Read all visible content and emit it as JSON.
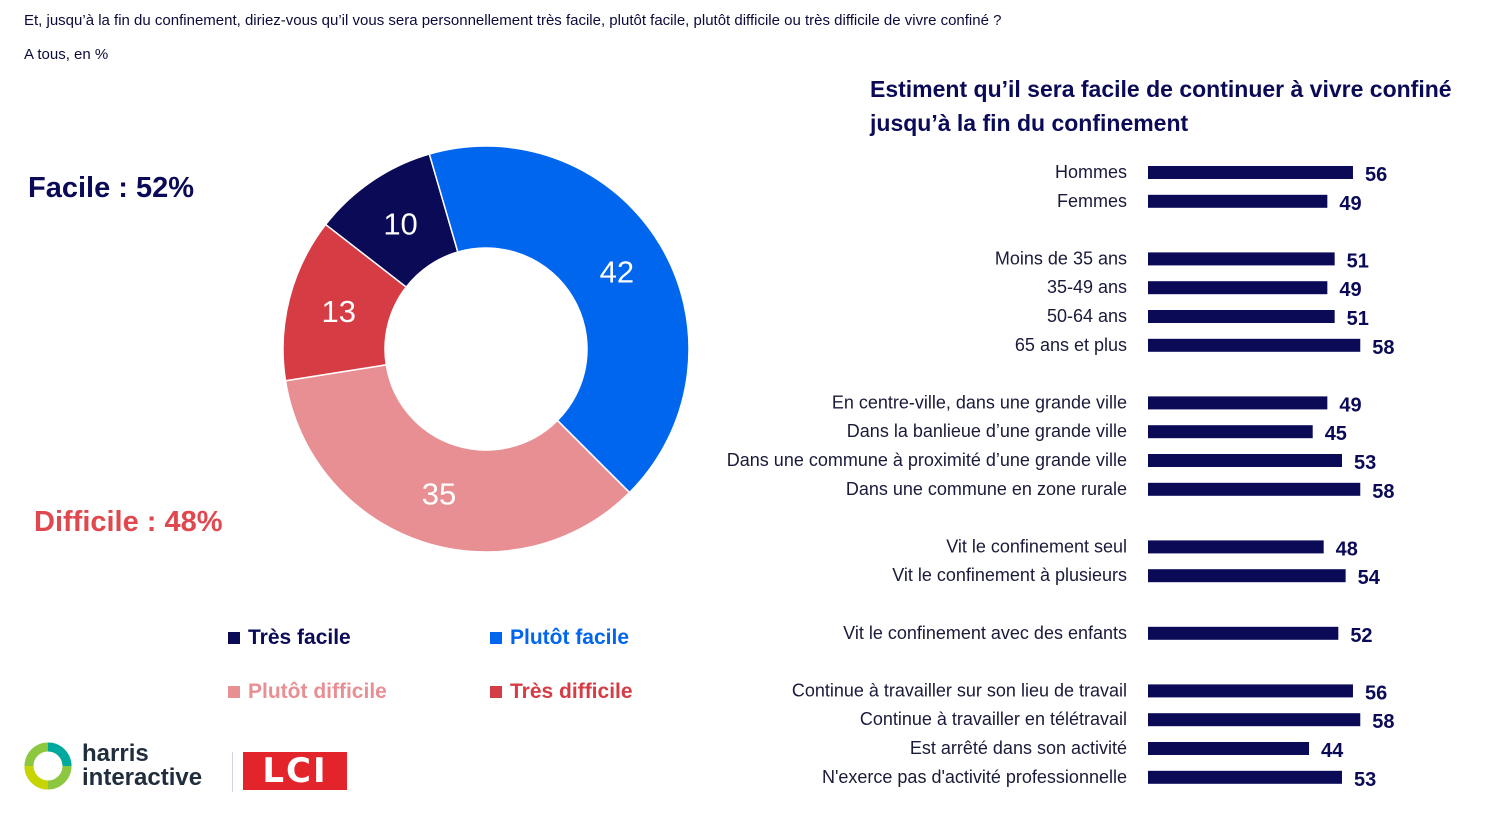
{
  "header": {
    "question": "Et, jusqu’à la fin du confinement, diriez-vous qu’il vous sera personnellement très facile, plutôt facile, plutôt difficile ou très difficile de vivre confiné ?",
    "base": "A tous, en %"
  },
  "totals": {
    "facile": "Facile : 52%",
    "difficile": "Difficile : 48%"
  },
  "logos": {
    "harris_line1": "harris",
    "harris_line2": "interactive",
    "lci": "LCI"
  },
  "colors": {
    "tres_facile": "#0a0a57",
    "plutot_facile": "#0066ee",
    "plutot_difficile": "#e88f93",
    "tres_difficile": "#d63c44",
    "bar": "#0a0a57"
  },
  "chart_data": [
    {
      "type": "pie",
      "variant": "donut",
      "series": [
        {
          "name": "Très facile",
          "value": 10,
          "color": "#0a0a57"
        },
        {
          "name": "Plutôt facile",
          "value": 42,
          "color": "#0066ee"
        },
        {
          "name": "Plutôt difficile",
          "value": 35,
          "color": "#e88f93"
        },
        {
          "name": "Très difficile",
          "value": 13,
          "color": "#d63c44"
        }
      ],
      "legend": [
        "Très facile",
        "Plutôt facile",
        "Plutôt difficile",
        "Très difficile"
      ],
      "legend_placement": "bottom"
    },
    {
      "type": "bar",
      "orientation": "horizontal",
      "title": "Estiment qu’il sera facile de continuer à vivre confiné jusqu’à la fin du confinement",
      "title_lines": [
        "Estiment qu’il sera facile de continuer à vivre confiné",
        "jusqu’à la fin du confinement"
      ],
      "groups": [
        {
          "categories": [
            "Hommes",
            "Femmes"
          ],
          "values": [
            56,
            49
          ]
        },
        {
          "categories": [
            "Moins de 35 ans",
            "35-49 ans",
            "50-64 ans",
            "65 ans et plus"
          ],
          "values": [
            51,
            49,
            51,
            58
          ]
        },
        {
          "categories": [
            "En centre-ville, dans une grande ville",
            "Dans la banlieue d’une grande ville",
            "Dans une commune à proximité d’une grande ville",
            "Dans une commune en zone rurale"
          ],
          "values": [
            49,
            45,
            53,
            58
          ]
        },
        {
          "categories": [
            "Vit le confinement seul",
            "Vit le confinement à plusieurs"
          ],
          "values": [
            48,
            54
          ]
        },
        {
          "categories": [
            "Vit le confinement avec des enfants"
          ],
          "values": [
            52
          ]
        },
        {
          "categories": [
            "Continue à travailler sur son lieu de travail",
            "Continue à travailler en télétravail",
            "Est arrêté dans son activité",
            "N'exerce pas d'activité professionnelle"
          ],
          "values": [
            56,
            58,
            44,
            53
          ]
        }
      ],
      "xlim": [
        0,
        100
      ],
      "grid": false
    }
  ]
}
